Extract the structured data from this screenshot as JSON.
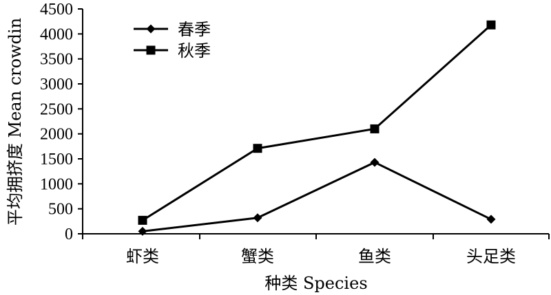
{
  "chart_data": {
    "type": "line",
    "categories": [
      "虾类",
      "蟹类",
      "鱼类",
      "头足类"
    ],
    "series": [
      {
        "name": "春季",
        "marker": "diamond",
        "values": [
          50,
          320,
          1430,
          290
        ]
      },
      {
        "name": "秋季",
        "marker": "square",
        "values": [
          270,
          1710,
          2100,
          4180
        ]
      }
    ],
    "xlabel": "种类 Species",
    "ylabel": "平均拥挤度 Mean crowdin",
    "ylim": [
      0,
      4500
    ],
    "yticks": [
      0,
      500,
      1000,
      1500,
      2000,
      2500,
      3000,
      3500,
      4000,
      4500
    ],
    "grid": false,
    "legend_position": "top-left",
    "line_color": "#000000"
  }
}
